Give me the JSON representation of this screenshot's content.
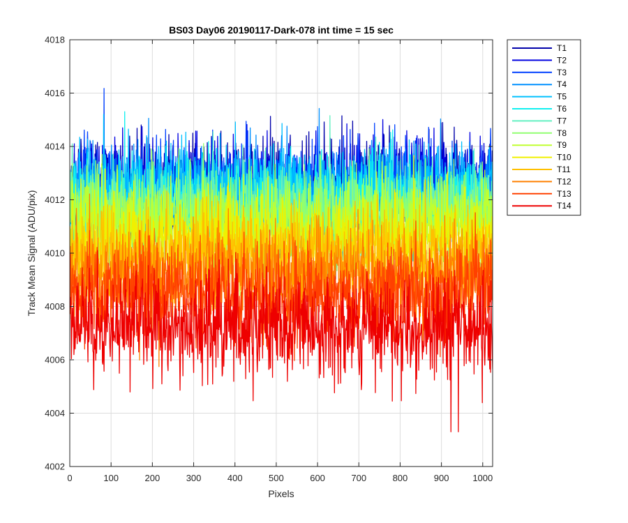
{
  "chart_data": {
    "type": "line",
    "title": "BS03 Day06 20190117-Dark-078 int time = 15 sec",
    "xlabel": "Pixels",
    "ylabel": "Track Mean Signal (ADU/pix)",
    "xlim": [
      0,
      1024
    ],
    "ylim": [
      4002,
      4018
    ],
    "xticks": [
      0,
      100,
      200,
      300,
      400,
      500,
      600,
      700,
      800,
      900,
      1000
    ],
    "yticks": [
      4002,
      4004,
      4006,
      4008,
      4010,
      4012,
      4014,
      4016,
      4018
    ],
    "grid": true,
    "legend_position": "outside-top-right",
    "n_points_per_series": 1024,
    "series": [
      {
        "name": "T1",
        "color": "#0000aa",
        "mean": 4012.6,
        "std": 0.85
      },
      {
        "name": "T2",
        "color": "#0000e0",
        "mean": 4012.5,
        "std": 0.85
      },
      {
        "name": "T3",
        "color": "#0040ff",
        "mean": 4012.4,
        "std": 0.85
      },
      {
        "name": "T4",
        "color": "#0090ff",
        "mean": 4012.2,
        "std": 0.85
      },
      {
        "name": "T5",
        "color": "#00c0ff",
        "mean": 4012.3,
        "std": 0.85
      },
      {
        "name": "T6",
        "color": "#10f0f0",
        "mean": 4012.0,
        "std": 0.85
      },
      {
        "name": "T7",
        "color": "#60f0c0",
        "mean": 4011.7,
        "std": 0.85
      },
      {
        "name": "T8",
        "color": "#90ff70",
        "mean": 4011.4,
        "std": 0.85
      },
      {
        "name": "T9",
        "color": "#c0ff30",
        "mean": 4011.0,
        "std": 0.85
      },
      {
        "name": "T10",
        "color": "#f0f000",
        "mean": 4010.5,
        "std": 0.85
      },
      {
        "name": "T11",
        "color": "#ffc000",
        "mean": 4009.9,
        "std": 0.85
      },
      {
        "name": "T12",
        "color": "#ff8000",
        "mean": 4009.2,
        "std": 0.9
      },
      {
        "name": "T13",
        "color": "#ff4000",
        "mean": 4008.5,
        "std": 0.9
      },
      {
        "name": "T14",
        "color": "#ee0000",
        "mean": 4007.2,
        "std": 0.95
      }
    ]
  }
}
